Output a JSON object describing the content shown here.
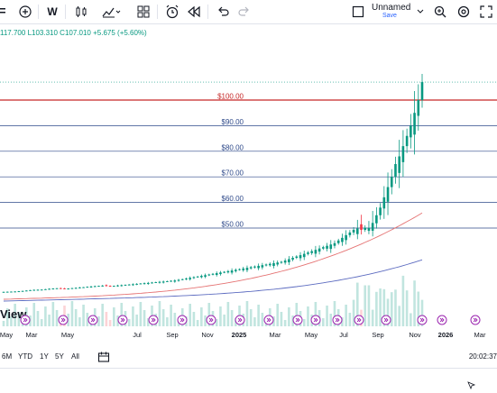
{
  "toolbar": {
    "interval": "W",
    "layout_name": "Unnamed",
    "layout_sub": "Save",
    "icons": [
      "add-icon",
      "candles-icon",
      "indicators-icon",
      "templates-icon",
      "alert-icon",
      "replay-icon",
      "undo-icon",
      "redo-icon",
      "layout-icon",
      "search-icon",
      "settings-icon",
      "fullscreen-icon"
    ]
  },
  "legend": {
    "high": "117.700",
    "low": "L103.310",
    "close": "C107.010",
    "change": "+5.675 (+5.60%)"
  },
  "watermark": "View",
  "price_axis": [
    "$100.00",
    "$90.00",
    "$80.00",
    "$70.00",
    "$60.00",
    "$50.00"
  ],
  "time_axis": [
    "Mar",
    "May",
    "Jul",
    "Sep",
    "Nov",
    "2025",
    "Mar",
    "May",
    "Jul",
    "Sep",
    "Nov",
    "2026",
    "Mar",
    "May"
  ],
  "timeframes": [
    "6M",
    "YTD",
    "1Y",
    "5Y",
    "All"
  ],
  "clock": "20:02:37",
  "colors": {
    "up": "#089981",
    "down": "#f23645",
    "red_line": "#c62828",
    "blue_line": "#2f4a8a",
    "ma_red": "#e57373",
    "ma_blue": "#5c6bc0",
    "event": "#9c27b0"
  },
  "chart_data": {
    "type": "candlestick",
    "horizontal_levels": [
      100,
      90,
      80,
      70,
      60,
      50
    ],
    "last_price": 107.01,
    "weekly_close_approx": [
      1.5,
      1.6,
      1.7,
      1.8,
      2.0,
      2.2,
      2.5,
      2.8,
      3.0,
      3.1,
      3.2,
      3.5,
      3.8,
      4.0,
      4.2,
      4.0,
      3.8,
      4.0,
      4.3,
      4.5,
      4.8,
      5.0,
      5.3,
      5.5,
      5.8,
      6.0,
      6.2,
      6.0,
      5.8,
      6.0,
      6.3,
      6.5,
      6.8,
      7.0,
      7.2,
      7.5,
      7.8,
      8.0,
      8.2,
      8.5,
      8.8,
      9.0,
      9.2,
      9.5,
      9.8,
      10.0,
      10.5,
      11.0,
      11.5,
      12.0,
      12.5,
      13.0,
      13.5,
      14.0,
      14.5,
      15.0,
      15.5,
      16.0,
      16.5,
      17.0,
      17.5,
      18.0,
      18.5,
      19.0,
      19.5,
      20.0,
      20.5,
      21.0,
      21.5,
      22.0,
      22.5,
      23.0,
      23.5,
      24.0,
      25.0,
      26.0,
      27.0,
      28.0,
      29.0,
      30.0,
      31.0,
      32.0,
      33.0,
      34.0,
      35.0,
      36.0,
      37.0,
      38.0,
      40.0,
      42.0,
      44.0,
      46.0,
      48.0,
      49.0,
      48.0,
      49.5,
      50.0,
      52.0,
      55.0,
      58.0,
      62.0,
      66.0,
      70.0,
      75.0,
      78.0,
      82.0,
      86.0,
      90.0,
      95.0,
      100.0,
      107.01
    ]
  }
}
